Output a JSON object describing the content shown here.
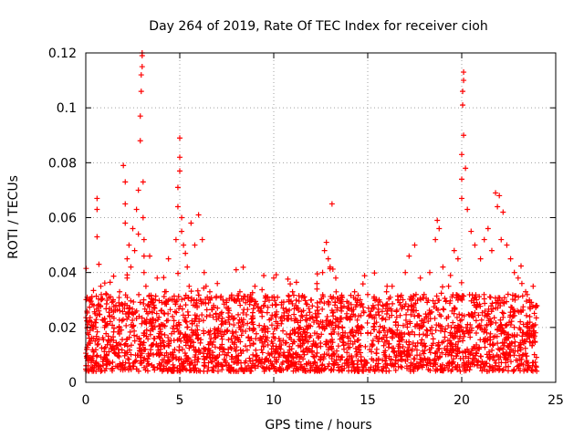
{
  "chart_data": {
    "type": "scatter",
    "title": "Day 264 of 2019, Rate Of TEC Index for receiver cioh",
    "xlabel": "GPS time / hours",
    "ylabel": "ROTI / TECUs",
    "xlim": [
      0,
      25
    ],
    "ylim": [
      0,
      0.12
    ],
    "xticks": [
      0,
      5,
      10,
      15,
      20,
      25
    ],
    "xtick_labels": [
      "0",
      "5",
      "10",
      "15",
      "20",
      "25"
    ],
    "yticks": [
      0,
      0.02,
      0.04,
      0.06,
      0.08,
      0.1,
      0.12
    ],
    "ytick_labels": [
      "0",
      "0.02",
      "0.04",
      "0.06",
      "0.08",
      "0.1",
      "0.12"
    ],
    "grid": true,
    "marker": "+",
    "color": "#ff0000",
    "series": [
      {
        "name": "ROTI",
        "x": [
          0.05,
          0.1,
          0.2,
          0.3,
          0.4,
          0.5,
          0.6,
          0.6,
          0.6,
          0.7,
          0.8,
          1.0,
          1.2,
          1.4,
          1.6,
          1.8,
          2.0,
          2.1,
          2.1,
          2.1,
          2.2,
          2.2,
          2.3,
          2.4,
          2.5,
          2.6,
          2.7,
          2.8,
          2.8,
          2.9,
          2.9,
          2.95,
          2.95,
          3.0,
          3.0,
          3.0,
          3.05,
          3.05,
          3.1,
          3.1,
          3.1,
          3.2,
          3.3,
          3.4,
          3.6,
          3.8,
          4.0,
          4.2,
          4.4,
          4.6,
          4.8,
          4.9,
          4.9,
          5.0,
          5.0,
          5.0,
          5.1,
          5.1,
          5.2,
          5.3,
          5.4,
          5.5,
          5.6,
          5.8,
          6.0,
          6.2,
          6.3,
          6.4,
          6.6,
          6.8,
          7.0,
          7.3,
          7.6,
          8.0,
          8.2,
          8.5,
          8.8,
          9.0,
          9.3,
          9.6,
          10.0,
          10.2,
          10.5,
          10.8,
          11.0,
          11.3,
          11.6,
          12.0,
          12.3,
          12.6,
          12.7,
          12.8,
          12.9,
          13.0,
          13.1,
          13.3,
          13.6,
          14.0,
          14.3,
          14.6,
          15.0,
          15.3,
          15.6,
          16.0,
          16.3,
          16.6,
          17.0,
          17.2,
          17.5,
          17.8,
          18.0,
          18.3,
          18.6,
          18.7,
          18.8,
          19.0,
          19.3,
          19.6,
          19.8,
          20.0,
          20.0,
          20.0,
          20.05,
          20.05,
          20.1,
          20.1,
          20.1,
          20.2,
          20.3,
          20.5,
          20.7,
          21.0,
          21.2,
          21.4,
          21.6,
          21.8,
          21.9,
          22.0,
          22.1,
          22.2,
          22.4,
          22.6,
          22.8,
          23.0,
          23.2,
          23.4,
          23.6,
          23.8,
          23.95
        ],
        "y": [
          0.012,
          0.018,
          0.03,
          0.022,
          0.016,
          0.025,
          0.067,
          0.063,
          0.053,
          0.043,
          0.035,
          0.02,
          0.015,
          0.024,
          0.028,
          0.033,
          0.079,
          0.073,
          0.065,
          0.058,
          0.045,
          0.038,
          0.05,
          0.042,
          0.056,
          0.048,
          0.063,
          0.07,
          0.054,
          0.088,
          0.097,
          0.106,
          0.112,
          0.115,
          0.119,
          0.12,
          0.073,
          0.06,
          0.052,
          0.046,
          0.04,
          0.035,
          0.028,
          0.046,
          0.03,
          0.038,
          0.026,
          0.033,
          0.045,
          0.03,
          0.052,
          0.064,
          0.071,
          0.089,
          0.082,
          0.077,
          0.06,
          0.055,
          0.05,
          0.047,
          0.042,
          0.035,
          0.058,
          0.05,
          0.061,
          0.052,
          0.04,
          0.035,
          0.033,
          0.028,
          0.036,
          0.03,
          0.027,
          0.041,
          0.033,
          0.029,
          0.03,
          0.035,
          0.026,
          0.031,
          0.038,
          0.031,
          0.027,
          0.03,
          0.033,
          0.027,
          0.031,
          0.03,
          0.034,
          0.04,
          0.048,
          0.051,
          0.045,
          0.042,
          0.065,
          0.038,
          0.03,
          0.027,
          0.033,
          0.028,
          0.032,
          0.027,
          0.03,
          0.033,
          0.035,
          0.03,
          0.04,
          0.046,
          0.05,
          0.038,
          0.032,
          0.04,
          0.052,
          0.059,
          0.056,
          0.042,
          0.035,
          0.048,
          0.045,
          0.067,
          0.074,
          0.083,
          0.101,
          0.106,
          0.11,
          0.113,
          0.09,
          0.078,
          0.063,
          0.055,
          0.05,
          0.045,
          0.052,
          0.056,
          0.048,
          0.069,
          0.064,
          0.068,
          0.052,
          0.062,
          0.05,
          0.045,
          0.04,
          0.038,
          0.036,
          0.033,
          0.03,
          0.035,
          0.028
        ]
      }
    ],
    "background_noise": {
      "description": "dense cloud of ROTI values between roughly 0.005 and 0.03 across the full 0-24 h range",
      "y_min": 0.004,
      "y_max": 0.032,
      "x_min": 0,
      "x_max": 24
    }
  }
}
